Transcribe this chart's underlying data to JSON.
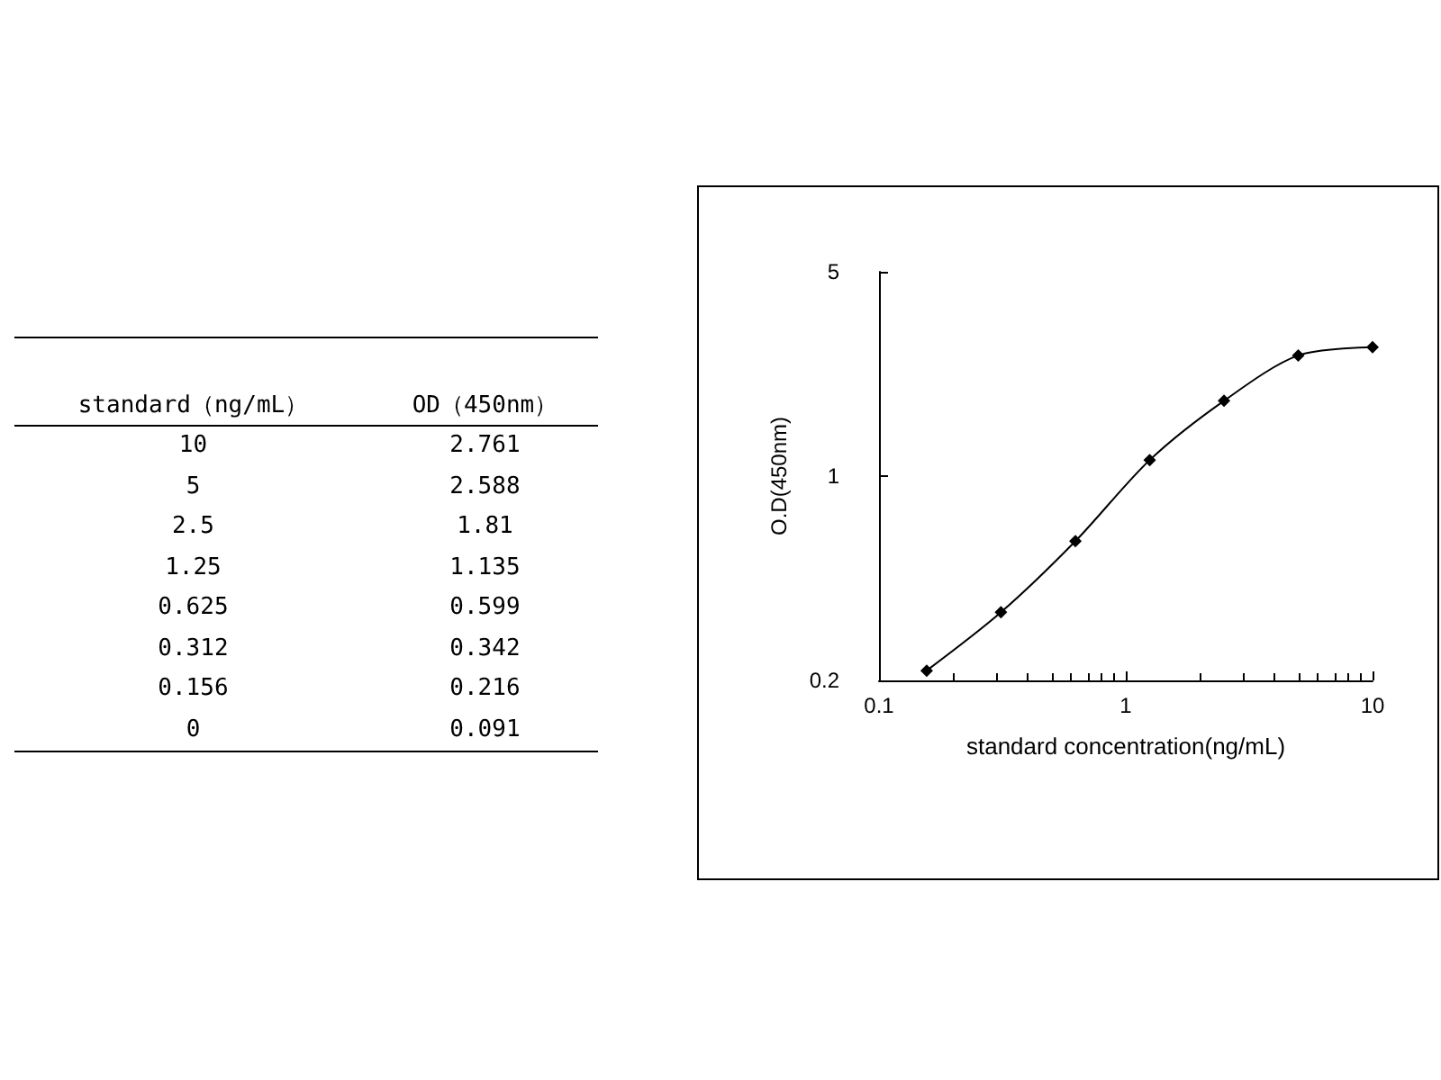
{
  "chart_data": [
    {
      "type": "other",
      "annotations": [
        "standard（ng/mL）",
        "OD（450nm）",
        "10",
        "2.761",
        "5",
        "2.588",
        "2.5",
        "1.81",
        "1.25",
        "1.135",
        "0.625",
        "0.599",
        "0.312",
        "0.342",
        "0.156",
        "0.216",
        "0",
        "0.091"
      ]
    },
    {
      "type": "line",
      "xlabel": "standard concentration(ng/mL)",
      "ylabel": "O.D(450nm)",
      "log": "xy",
      "x": [
        0.156,
        0.312,
        0.625,
        1.25,
        2.5,
        5,
        10
      ],
      "series": [
        {
          "color": "#000000",
          "values": [
            0.216,
            0.342,
            0.599,
            1.135,
            1.81,
            2.588,
            2.761
          ]
        }
      ],
      "xlim": [
        0.1,
        10
      ],
      "xticks": [
        0.1,
        1,
        10
      ],
      "ylim": [
        0.2,
        5
      ],
      "yticks": [
        0.2,
        1,
        5
      ],
      "marker": "diamond",
      "line_style": "solid",
      "grid": false
    }
  ]
}
